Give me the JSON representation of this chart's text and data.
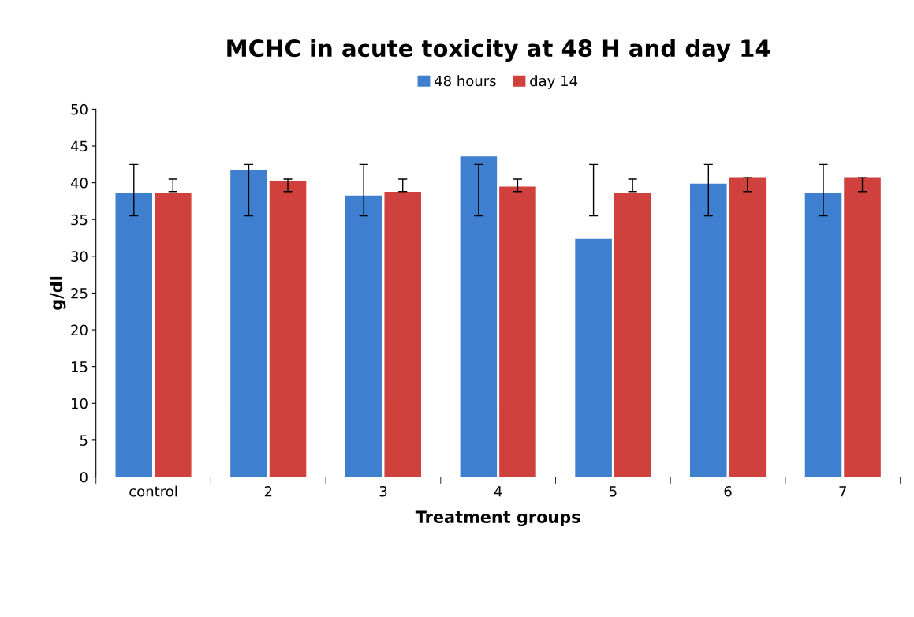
{
  "chart_data": {
    "type": "bar",
    "title": "MCHC in acute toxicity at 48 H and day 14",
    "xlabel": "Treatment groups",
    "ylabel": "g/dl",
    "categories": [
      "control",
      "2",
      "3",
      "4",
      "5",
      "6",
      "7"
    ],
    "series": [
      {
        "name": "48 hours",
        "color": "#3f7fd0",
        "values": [
          38.5,
          41.6,
          38.2,
          43.5,
          32.3,
          39.8,
          38.5
        ],
        "errors": [
          [
            35.5,
            42.5
          ],
          [
            35.5,
            42.5
          ],
          [
            35.5,
            42.5
          ],
          [
            35.5,
            42.5
          ],
          [
            35.5,
            42.5
          ],
          [
            35.5,
            42.5
          ],
          [
            35.5,
            42.5
          ]
        ]
      },
      {
        "name": "day 14",
        "color": "#d0413e",
        "values": [
          38.5,
          40.2,
          38.7,
          39.4,
          38.6,
          40.7,
          40.7
        ],
        "errors": [
          [
            38.8,
            40.5
          ],
          [
            38.8,
            40.5
          ],
          [
            38.8,
            40.5
          ],
          [
            38.8,
            40.5
          ],
          [
            38.8,
            40.5
          ],
          [
            38.8,
            40.7
          ],
          [
            38.8,
            40.7
          ]
        ]
      }
    ],
    "ylim": [
      0,
      50
    ],
    "yticks": [
      0,
      5,
      10,
      15,
      20,
      25,
      30,
      35,
      40,
      45,
      50
    ],
    "grid": false,
    "legend": "top"
  }
}
